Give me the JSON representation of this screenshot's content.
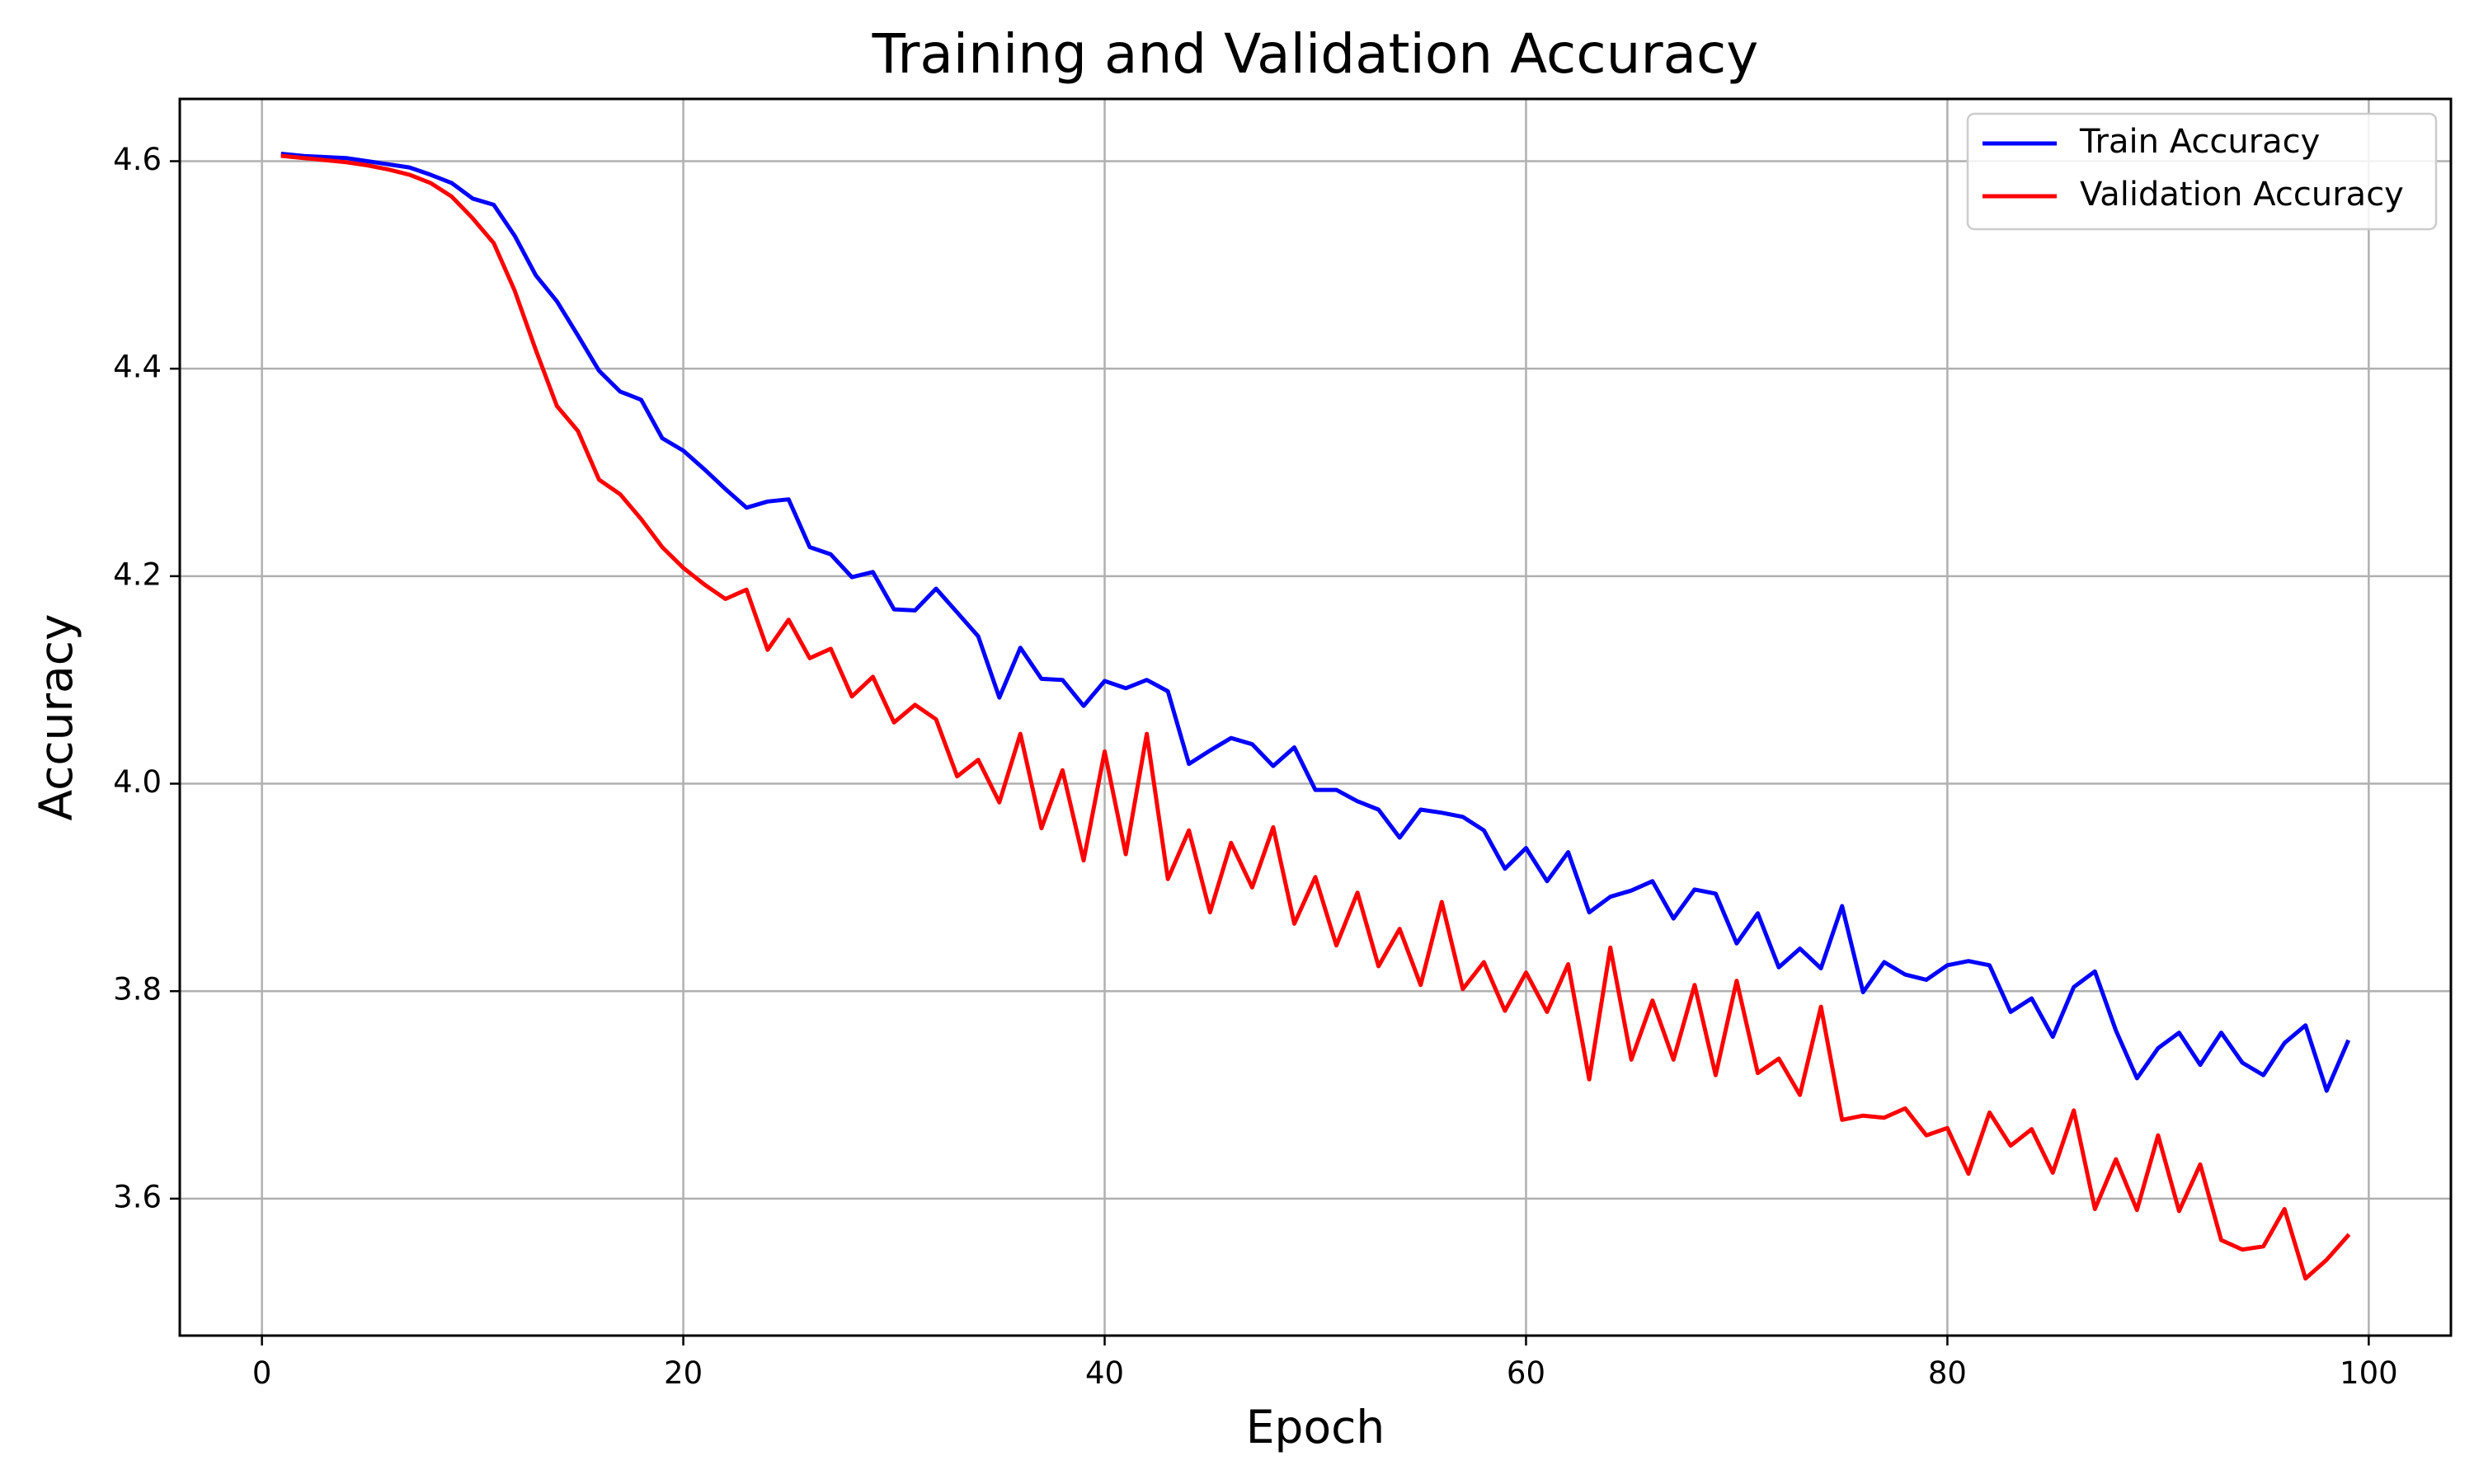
{
  "chart_data": {
    "type": "line",
    "title": "Training and Validation Accuracy",
    "xlabel": "Epoch",
    "ylabel": "Accuracy",
    "xlim": [
      -3.9,
      103.9
    ],
    "ylim": [
      3.468,
      4.66
    ],
    "x_ticks": [
      0,
      20,
      40,
      60,
      80,
      100
    ],
    "y_ticks": [
      3.6,
      3.8,
      4.0,
      4.2,
      4.4,
      4.6
    ],
    "x_tick_labels": [
      "0",
      "20",
      "40",
      "60",
      "80",
      "100"
    ],
    "y_tick_labels": [
      "3.6",
      "3.8",
      "4.0",
      "4.2",
      "4.4",
      "4.6"
    ],
    "grid": true,
    "legend_position": "top-right",
    "x": [
      1,
      2,
      3,
      4,
      5,
      6,
      7,
      8,
      9,
      10,
      11,
      12,
      13,
      14,
      15,
      16,
      17,
      18,
      19,
      20,
      21,
      22,
      23,
      24,
      25,
      26,
      27,
      28,
      29,
      30,
      31,
      32,
      33,
      34,
      35,
      36,
      37,
      38,
      39,
      40,
      41,
      42,
      43,
      44,
      45,
      46,
      47,
      48,
      49,
      50,
      51,
      52,
      53,
      54,
      55,
      56,
      57,
      58,
      59,
      60,
      61,
      62,
      63,
      64,
      65,
      66,
      67,
      68,
      69,
      70,
      71,
      72,
      73,
      74,
      75,
      76,
      77,
      78,
      79,
      80,
      81,
      82,
      83,
      84,
      85,
      86,
      87,
      88,
      89,
      90,
      91,
      92,
      93,
      94,
      95,
      96,
      97,
      98,
      99
    ],
    "series": [
      {
        "name": "Train Accuracy",
        "color": "#0000ff",
        "values": [
          4.607,
          4.605,
          4.604,
          4.603,
          4.6,
          4.597,
          4.594,
          4.587,
          4.579,
          4.564,
          4.558,
          4.528,
          4.49,
          4.465,
          4.432,
          4.398,
          4.378,
          4.37,
          4.333,
          4.321,
          4.303,
          4.284,
          4.266,
          4.272,
          4.274,
          4.228,
          4.221,
          4.199,
          4.204,
          4.168,
          4.167,
          4.188,
          4.165,
          4.142,
          4.083,
          4.131,
          4.101,
          4.1,
          4.075,
          4.099,
          4.092,
          4.1,
          4.089,
          4.019,
          4.032,
          4.044,
          4.038,
          4.017,
          4.035,
          3.994,
          3.994,
          3.983,
          3.975,
          3.948,
          3.975,
          3.972,
          3.968,
          3.955,
          3.918,
          3.938,
          3.906,
          3.934,
          3.876,
          3.891,
          3.897,
          3.906,
          3.87,
          3.898,
          3.894,
          3.846,
          3.875,
          3.823,
          3.841,
          3.822,
          3.882,
          3.799,
          3.828,
          3.816,
          3.811,
          3.825,
          3.829,
          3.825,
          3.78,
          3.793,
          3.756,
          3.804,
          3.819,
          3.762,
          3.716,
          3.745,
          3.76,
          3.729,
          3.76,
          3.731,
          3.719,
          3.75,
          3.767,
          3.704,
          3.751
        ]
      },
      {
        "name": "Validation Accuracy",
        "color": "#ff0000",
        "values": [
          4.605,
          4.603,
          4.601,
          4.599,
          4.596,
          4.592,
          4.587,
          4.579,
          4.566,
          4.545,
          4.521,
          4.475,
          4.418,
          4.364,
          4.34,
          4.293,
          4.279,
          4.255,
          4.228,
          4.208,
          4.192,
          4.178,
          4.187,
          4.129,
          4.158,
          4.121,
          4.13,
          4.084,
          4.103,
          4.059,
          4.076,
          4.062,
          4.007,
          4.023,
          3.982,
          4.048,
          3.957,
          4.013,
          3.926,
          4.031,
          3.932,
          4.048,
          3.908,
          3.955,
          3.876,
          3.943,
          3.9,
          3.958,
          3.865,
          3.91,
          3.844,
          3.895,
          3.824,
          3.86,
          3.806,
          3.886,
          3.802,
          3.828,
          3.781,
          3.818,
          3.78,
          3.826,
          3.715,
          3.842,
          3.734,
          3.791,
          3.734,
          3.806,
          3.719,
          3.81,
          3.721,
          3.735,
          3.7,
          3.785,
          3.676,
          3.68,
          3.678,
          3.687,
          3.661,
          3.668,
          3.624,
          3.683,
          3.651,
          3.667,
          3.625,
          3.685,
          3.59,
          3.638,
          3.589,
          3.661,
          3.588,
          3.633,
          3.56,
          3.551,
          3.554,
          3.59,
          3.523,
          3.541,
          3.564
        ]
      }
    ]
  }
}
